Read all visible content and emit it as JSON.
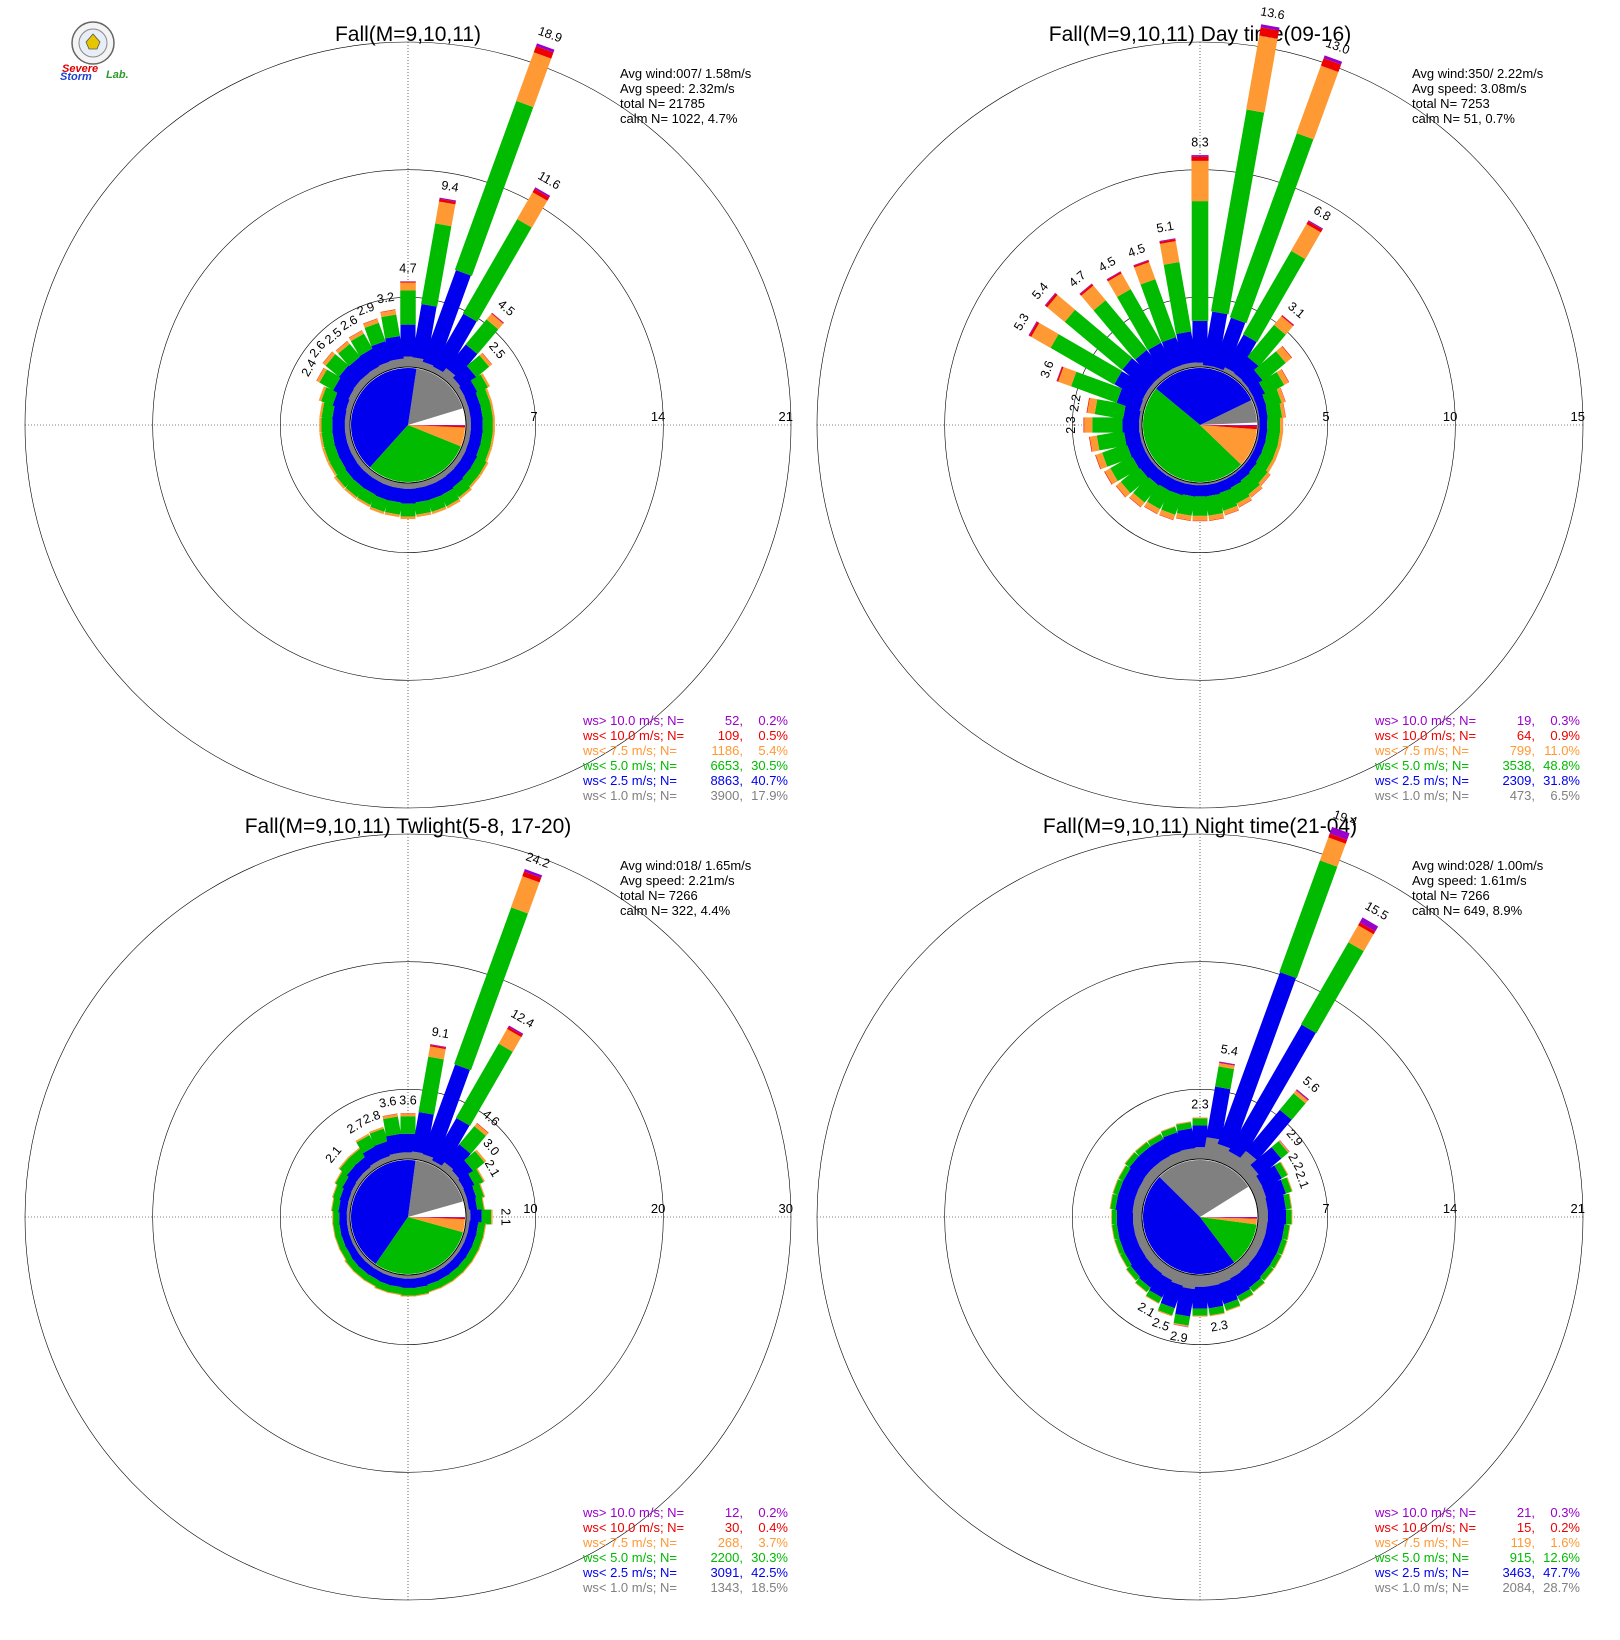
{
  "logo": {
    "text_severe": "Severe",
    "text_storm": "Storm",
    "text_lab": "Lab."
  },
  "colors": {
    "gray": "#808080",
    "blue": "#0000ee",
    "green": "#00bb00",
    "orange": "#ff9933",
    "red": "#ee0000",
    "purple": "#9900cc",
    "white": "#ffffff"
  },
  "chart_data": [
    {
      "type": "wind-rose",
      "title": "Fall(M=9,10,11)",
      "stats": {
        "avg_wind": "Avg wind:007/ 1.58m/s",
        "avg_speed": "Avg speed: 2.32m/s",
        "total": "total N=      21785",
        "calm": "calm N=   1022,   4.7%"
      },
      "rings": [
        7,
        14,
        21
      ],
      "ring_labels": [
        "7",
        "14",
        "21"
      ],
      "calm_percent": 4.7,
      "speed_bins": [
        "ws<1.0",
        "ws<2.5",
        "ws<5.0",
        "ws<7.5",
        "ws<10.0",
        "ws>10.0"
      ],
      "class_shares_percent": [
        17.9,
        40.7,
        30.5,
        5.4,
        0.5,
        0.2
      ],
      "sectors": [
        {
          "dir": 0,
          "total": 4.7,
          "labeled": true
        },
        {
          "dir": 10,
          "total": 9.4,
          "labeled": true
        },
        {
          "dir": 20,
          "total": 18.9,
          "labeled": true
        },
        {
          "dir": 30,
          "total": 11.6,
          "labeled": true
        },
        {
          "dir": 40,
          "total": 4.5,
          "labeled": true
        },
        {
          "dir": 50,
          "total": 2.5,
          "labeled": true
        },
        {
          "dir": 60,
          "total": 1.8
        },
        {
          "dir": 70,
          "total": 1.6
        },
        {
          "dir": 80,
          "total": 1.6
        },
        {
          "dir": 90,
          "total": 1.6
        },
        {
          "dir": 100,
          "total": 1.6
        },
        {
          "dir": 110,
          "total": 1.6
        },
        {
          "dir": 120,
          "total": 1.7
        },
        {
          "dir": 130,
          "total": 1.7
        },
        {
          "dir": 140,
          "total": 1.8
        },
        {
          "dir": 150,
          "total": 1.9
        },
        {
          "dir": 160,
          "total": 1.9
        },
        {
          "dir": 170,
          "total": 1.9
        },
        {
          "dir": 180,
          "total": 2.0
        },
        {
          "dir": 190,
          "total": 1.9
        },
        {
          "dir": 200,
          "total": 1.9
        },
        {
          "dir": 210,
          "total": 1.8
        },
        {
          "dir": 220,
          "total": 1.8
        },
        {
          "dir": 230,
          "total": 1.8
        },
        {
          "dir": 240,
          "total": 1.7
        },
        {
          "dir": 250,
          "total": 1.7
        },
        {
          "dir": 260,
          "total": 1.7
        },
        {
          "dir": 270,
          "total": 1.7
        },
        {
          "dir": 280,
          "total": 1.7
        },
        {
          "dir": 290,
          "total": 1.9
        },
        {
          "dir": 300,
          "total": 2.4,
          "labeled": true
        },
        {
          "dir": 310,
          "total": 2.6,
          "labeled": true
        },
        {
          "dir": 320,
          "total": 2.5,
          "labeled": true
        },
        {
          "dir": 330,
          "total": 2.6,
          "labeled": true
        },
        {
          "dir": 340,
          "total": 2.9,
          "labeled": true
        },
        {
          "dir": 350,
          "total": 3.2,
          "labeled": true
        }
      ],
      "legend": [
        {
          "label": "ws> 10.0 m/s; N=",
          "n": "52",
          "pct": "0.2%",
          "color": "#9900cc"
        },
        {
          "label": "ws< 10.0 m/s; N=",
          "n": "109",
          "pct": "0.5%",
          "color": "#ee0000"
        },
        {
          "label": "ws<  7.5 m/s; N=",
          "n": "1186",
          "pct": "5.4%",
          "color": "#ff9933"
        },
        {
          "label": "ws<  5.0 m/s; N=",
          "n": "6653",
          "pct": "30.5%",
          "color": "#00bb00"
        },
        {
          "label": "ws<  2.5 m/s; N=",
          "n": "8863",
          "pct": "40.7%",
          "color": "#0000ee"
        },
        {
          "label": "ws<  1.0 m/s; N=",
          "n": "3900",
          "pct": "17.9%",
          "color": "#808080"
        }
      ]
    },
    {
      "type": "wind-rose",
      "title": "Fall(M=9,10,11) Day time(09-16)",
      "stats": {
        "avg_wind": "Avg wind:350/ 2.22m/s",
        "avg_speed": "Avg speed: 3.08m/s",
        "total": "total N=       7253",
        "calm": "calm N=     51,   0.7%"
      },
      "rings": [
        5,
        10,
        15
      ],
      "ring_labels": [
        "5",
        "10",
        "15"
      ],
      "calm_percent": 0.7,
      "speed_bins": [
        "ws<1.0",
        "ws<2.5",
        "ws<5.0",
        "ws<7.5",
        "ws<10.0",
        "ws>10.0"
      ],
      "class_shares_percent": [
        6.5,
        31.8,
        48.8,
        11.0,
        0.9,
        0.3
      ],
      "sectors": [
        {
          "dir": 0,
          "total": 8.3,
          "labeled": true
        },
        {
          "dir": 10,
          "total": 13.6,
          "labeled": true
        },
        {
          "dir": 20,
          "total": 13.0,
          "labeled": true
        },
        {
          "dir": 30,
          "total": 6.8,
          "labeled": true
        },
        {
          "dir": 40,
          "total": 3.1,
          "labeled": true
        },
        {
          "dir": 50,
          "total": 2.2
        },
        {
          "dir": 60,
          "total": 1.6
        },
        {
          "dir": 70,
          "total": 1.2
        },
        {
          "dir": 80,
          "total": 1.1
        },
        {
          "dir": 90,
          "total": 1.0
        },
        {
          "dir": 100,
          "total": 1.0
        },
        {
          "dir": 110,
          "total": 1.0
        },
        {
          "dir": 120,
          "total": 1.0
        },
        {
          "dir": 130,
          "total": 1.1
        },
        {
          "dir": 140,
          "total": 1.2
        },
        {
          "dir": 150,
          "total": 1.3
        },
        {
          "dir": 160,
          "total": 1.4
        },
        {
          "dir": 170,
          "total": 1.5
        },
        {
          "dir": 180,
          "total": 1.5
        },
        {
          "dir": 190,
          "total": 1.5
        },
        {
          "dir": 200,
          "total": 1.6
        },
        {
          "dir": 210,
          "total": 1.6
        },
        {
          "dir": 220,
          "total": 1.7
        },
        {
          "dir": 230,
          "total": 1.8
        },
        {
          "dir": 240,
          "total": 1.9
        },
        {
          "dir": 250,
          "total": 2.0
        },
        {
          "dir": 260,
          "total": 2.1
        },
        {
          "dir": 270,
          "total": 2.3,
          "labeled": true
        },
        {
          "dir": 280,
          "total": 2.2,
          "labeled": true
        },
        {
          "dir": 290,
          "total": 3.6,
          "labeled": true
        },
        {
          "dir": 300,
          "total": 5.3,
          "labeled": true
        },
        {
          "dir": 310,
          "total": 5.4,
          "labeled": true
        },
        {
          "dir": 320,
          "total": 4.7,
          "labeled": true
        },
        {
          "dir": 330,
          "total": 4.5,
          "labeled": true
        },
        {
          "dir": 340,
          "total": 4.5,
          "labeled": true
        },
        {
          "dir": 350,
          "total": 5.1,
          "labeled": true
        }
      ],
      "legend": [
        {
          "label": "ws> 10.0 m/s; N=",
          "n": "19",
          "pct": "0.3%",
          "color": "#9900cc"
        },
        {
          "label": "ws< 10.0 m/s; N=",
          "n": "64",
          "pct": "0.9%",
          "color": "#ee0000"
        },
        {
          "label": "ws<  7.5 m/s; N=",
          "n": "799",
          "pct": "11.0%",
          "color": "#ff9933"
        },
        {
          "label": "ws<  5.0 m/s; N=",
          "n": "3538",
          "pct": "48.8%",
          "color": "#00bb00"
        },
        {
          "label": "ws<  2.5 m/s; N=",
          "n": "2309",
          "pct": "31.8%",
          "color": "#0000ee"
        },
        {
          "label": "ws<  1.0 m/s; N=",
          "n": "473",
          "pct": "6.5%",
          "color": "#808080"
        }
      ]
    },
    {
      "type": "wind-rose",
      "title": "Fall(M=9,10,11) Twlight(5-8, 17-20)",
      "stats": {
        "avg_wind": "Avg wind:018/ 1.65m/s",
        "avg_speed": "Avg speed: 2.21m/s",
        "total": "total N=       7266",
        "calm": "calm N=    322,   4.4%"
      },
      "rings": [
        10,
        20,
        30
      ],
      "ring_labels": [
        "10",
        "20",
        "30"
      ],
      "calm_percent": 4.4,
      "speed_bins": [
        "ws<1.0",
        "ws<2.5",
        "ws<5.0",
        "ws<7.5",
        "ws<10.0",
        "ws>10.0"
      ],
      "class_shares_percent": [
        18.5,
        42.5,
        30.3,
        3.7,
        0.4,
        0.2
      ],
      "sectors": [
        {
          "dir": 0,
          "total": 3.6,
          "labeled": true
        },
        {
          "dir": 10,
          "total": 9.1,
          "labeled": true
        },
        {
          "dir": 20,
          "total": 24.2,
          "labeled": true
        },
        {
          "dir": 30,
          "total": 12.4,
          "labeled": true
        },
        {
          "dir": 40,
          "total": 4.6,
          "labeled": true
        },
        {
          "dir": 50,
          "total": 3.0,
          "labeled": true
        },
        {
          "dir": 60,
          "total": 2.1,
          "labeled": true
        },
        {
          "dir": 70,
          "total": 1.7
        },
        {
          "dir": 80,
          "total": 1.5
        },
        {
          "dir": 90,
          "total": 2.1,
          "labeled": true
        },
        {
          "dir": 100,
          "total": 1.6
        },
        {
          "dir": 110,
          "total": 1.6
        },
        {
          "dir": 120,
          "total": 1.6
        },
        {
          "dir": 130,
          "total": 1.6
        },
        {
          "dir": 140,
          "total": 1.6
        },
        {
          "dir": 150,
          "total": 1.6
        },
        {
          "dir": 160,
          "total": 1.6
        },
        {
          "dir": 170,
          "total": 1.7
        },
        {
          "dir": 180,
          "total": 1.7
        },
        {
          "dir": 190,
          "total": 1.6
        },
        {
          "dir": 200,
          "total": 1.6
        },
        {
          "dir": 210,
          "total": 1.5
        },
        {
          "dir": 220,
          "total": 1.5
        },
        {
          "dir": 230,
          "total": 1.5
        },
        {
          "dir": 240,
          "total": 1.4
        },
        {
          "dir": 250,
          "total": 1.4
        },
        {
          "dir": 260,
          "total": 1.4
        },
        {
          "dir": 270,
          "total": 1.4
        },
        {
          "dir": 280,
          "total": 1.5
        },
        {
          "dir": 290,
          "total": 1.6
        },
        {
          "dir": 300,
          "total": 1.8
        },
        {
          "dir": 310,
          "total": 2.1,
          "labeled": true
        },
        {
          "dir": 320,
          "total": 2.1
        },
        {
          "dir": 330,
          "total": 2.7,
          "labeled": true
        },
        {
          "dir": 340,
          "total": 2.8,
          "labeled": true
        },
        {
          "dir": 350,
          "total": 3.6,
          "labeled": true
        }
      ],
      "legend": [
        {
          "label": "ws> 10.0 m/s; N=",
          "n": "12",
          "pct": "0.2%",
          "color": "#9900cc"
        },
        {
          "label": "ws< 10.0 m/s; N=",
          "n": "30",
          "pct": "0.4%",
          "color": "#ee0000"
        },
        {
          "label": "ws<  7.5 m/s; N=",
          "n": "268",
          "pct": "3.7%",
          "color": "#ff9933"
        },
        {
          "label": "ws<  5.0 m/s; N=",
          "n": "2200",
          "pct": "30.3%",
          "color": "#00bb00"
        },
        {
          "label": "ws<  2.5 m/s; N=",
          "n": "3091",
          "pct": "42.5%",
          "color": "#0000ee"
        },
        {
          "label": "ws<  1.0 m/s; N=",
          "n": "1343",
          "pct": "18.5%",
          "color": "#808080"
        }
      ]
    },
    {
      "type": "wind-rose",
      "title": "Fall(M=9,10,11) Night time(21-04)",
      "stats": {
        "avg_wind": "Avg wind:028/ 1.00m/s",
        "avg_speed": "Avg speed: 1.61m/s",
        "total": "total N=       7266",
        "calm": "calm N=    649,   8.9%"
      },
      "rings": [
        7,
        14,
        21
      ],
      "ring_labels": [
        "7",
        "14",
        "21"
      ],
      "calm_percent": 8.9,
      "speed_bins": [
        "ws<1.0",
        "ws<2.5",
        "ws<5.0",
        "ws<7.5",
        "ws<10.0",
        "ws>10.0"
      ],
      "class_shares_percent": [
        28.7,
        47.7,
        12.6,
        1.6,
        0.2,
        0.3
      ],
      "sectors": [
        {
          "dir": 0,
          "total": 2.3,
          "labeled": true
        },
        {
          "dir": 10,
          "total": 5.4,
          "labeled": true
        },
        {
          "dir": 20,
          "total": 19.4,
          "labeled": true
        },
        {
          "dir": 30,
          "total": 15.5,
          "labeled": true
        },
        {
          "dir": 40,
          "total": 5.6,
          "labeled": true
        },
        {
          "dir": 50,
          "total": 2.9,
          "labeled": true
        },
        {
          "dir": 60,
          "total": 2.2,
          "labeled": true
        },
        {
          "dir": 70,
          "total": 2.1,
          "labeled": true
        },
        {
          "dir": 80,
          "total": 1.9
        },
        {
          "dir": 90,
          "total": 1.9
        },
        {
          "dir": 100,
          "total": 1.8
        },
        {
          "dir": 110,
          "total": 1.8
        },
        {
          "dir": 120,
          "total": 1.8
        },
        {
          "dir": 130,
          "total": 1.8
        },
        {
          "dir": 140,
          "total": 1.9
        },
        {
          "dir": 150,
          "total": 2.0
        },
        {
          "dir": 160,
          "total": 2.2
        },
        {
          "dir": 170,
          "total": 2.3,
          "labeled": true
        },
        {
          "dir": 180,
          "total": 2.3
        },
        {
          "dir": 190,
          "total": 2.9,
          "labeled": true
        },
        {
          "dir": 200,
          "total": 2.5,
          "labeled": true
        },
        {
          "dir": 210,
          "total": 2.1,
          "labeled": true
        },
        {
          "dir": 220,
          "total": 1.9
        },
        {
          "dir": 230,
          "total": 1.8
        },
        {
          "dir": 240,
          "total": 1.7
        },
        {
          "dir": 250,
          "total": 1.7
        },
        {
          "dir": 260,
          "total": 1.7
        },
        {
          "dir": 270,
          "total": 1.7
        },
        {
          "dir": 280,
          "total": 1.8
        },
        {
          "dir": 290,
          "total": 1.8
        },
        {
          "dir": 300,
          "total": 1.8
        },
        {
          "dir": 310,
          "total": 1.9
        },
        {
          "dir": 320,
          "total": 1.9
        },
        {
          "dir": 330,
          "total": 1.9
        },
        {
          "dir": 340,
          "total": 2.0
        },
        {
          "dir": 350,
          "total": 2.1
        }
      ],
      "legend": [
        {
          "label": "ws> 10.0 m/s; N=",
          "n": "21",
          "pct": "0.3%",
          "color": "#9900cc"
        },
        {
          "label": "ws< 10.0 m/s; N=",
          "n": "15",
          "pct": "0.2%",
          "color": "#ee0000"
        },
        {
          "label": "ws<  7.5 m/s; N=",
          "n": "119",
          "pct": "1.6%",
          "color": "#ff9933"
        },
        {
          "label": "ws<  5.0 m/s; N=",
          "n": "915",
          "pct": "12.6%",
          "color": "#00bb00"
        },
        {
          "label": "ws<  2.5 m/s; N=",
          "n": "3463",
          "pct": "47.7%",
          "color": "#0000ee"
        },
        {
          "label": "ws<  1.0 m/s; N=",
          "n": "2084",
          "pct": "28.7%",
          "color": "#808080"
        }
      ]
    }
  ]
}
